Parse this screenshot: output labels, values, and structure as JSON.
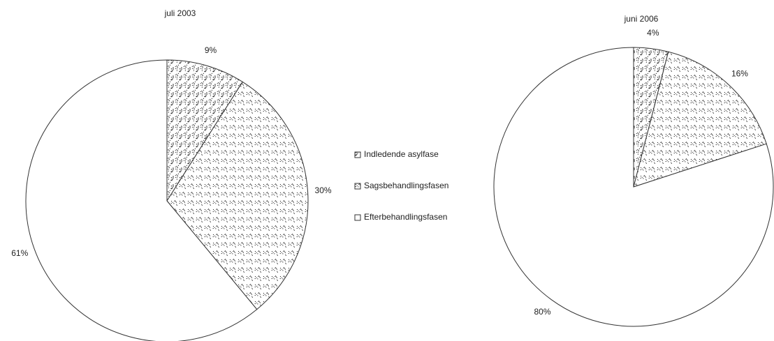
{
  "chart_data": [
    {
      "type": "pie",
      "title": "juli 2003",
      "categories": [
        "Indledende asylfase",
        "Sagsbehandlingsfasen",
        "Efterbehandlingsfasen"
      ],
      "values": [
        9,
        30,
        61
      ],
      "value_labels": [
        "9%",
        "30%",
        "61%"
      ],
      "colors": [
        "#555555",
        "#999999",
        "#ffffff"
      ]
    },
    {
      "type": "pie",
      "title": "juni 2006",
      "values": [
        4,
        16,
        80
      ],
      "value_labels": [
        "4%",
        "16%",
        "80%"
      ],
      "colors": [
        "#555555",
        "#999999",
        "#ffffff"
      ]
    }
  ]
}
